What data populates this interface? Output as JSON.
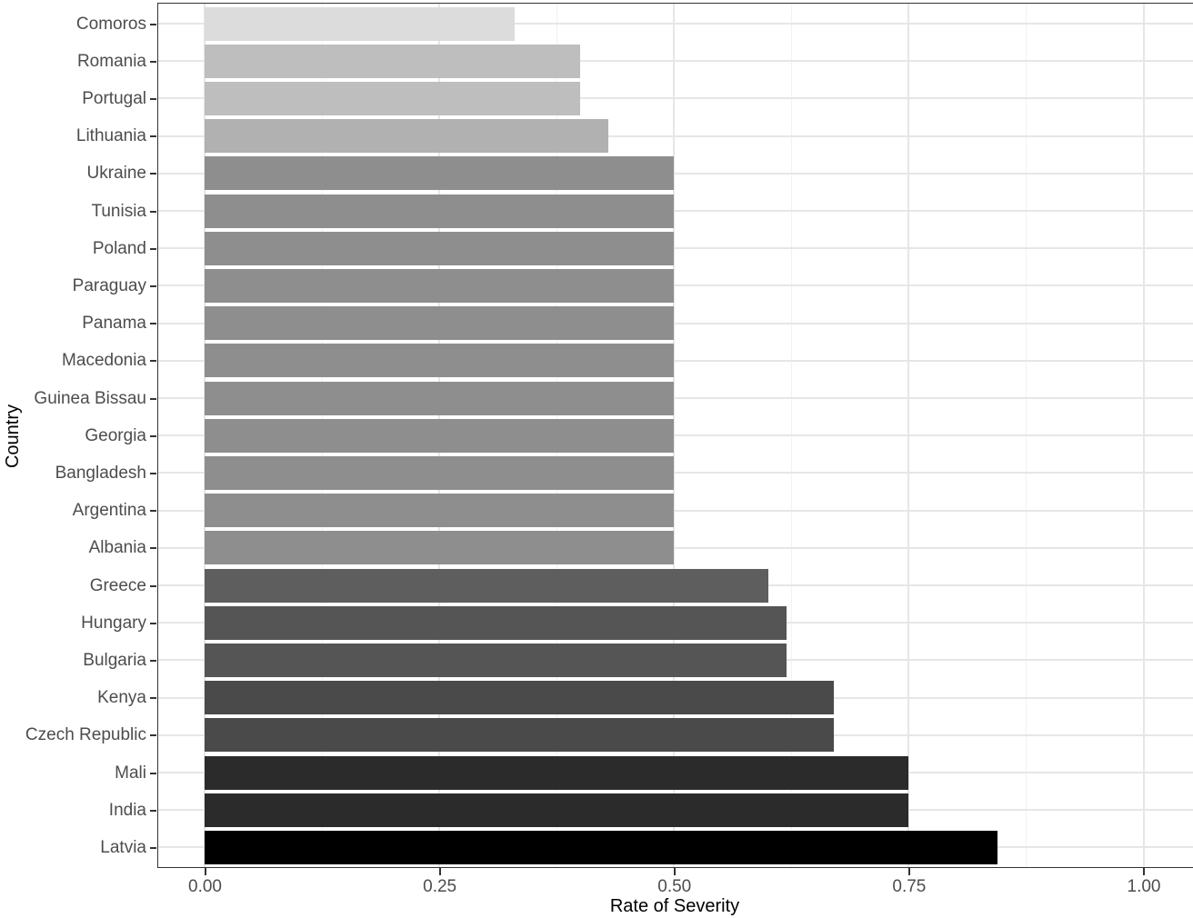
{
  "chart_data": {
    "type": "bar",
    "orientation": "horizontal",
    "title": "",
    "xlabel": "Rate of Severity",
    "ylabel": "Country",
    "xlim": [
      0,
      1.0
    ],
    "x_tick_labels": [
      "0.00",
      "0.25",
      "0.50",
      "0.75",
      "1.00"
    ],
    "x_tick_values": [
      0,
      0.25,
      0.5,
      0.75,
      1.0
    ],
    "x_minor_tick_values": [
      0.125,
      0.375,
      0.625,
      0.875
    ],
    "grid": true,
    "legend": "none",
    "color_mapping": "fill shade encodes rate of severity: light gray (low) to black (high)",
    "categories": [
      "Comoros",
      "Romania",
      "Portugal",
      "Lithuania",
      "Ukraine",
      "Tunisia",
      "Poland",
      "Paraguay",
      "Panama",
      "Macedonia",
      "Guinea Bissau",
      "Georgia",
      "Bangladesh",
      "Argentina",
      "Albania",
      "Greece",
      "Hungary",
      "Bulgaria",
      "Kenya",
      "Czech Republic",
      "Mali",
      "India",
      "Latvia"
    ],
    "values": [
      0.33,
      0.4,
      0.4,
      0.43,
      0.5,
      0.5,
      0.5,
      0.5,
      0.5,
      0.5,
      0.5,
      0.5,
      0.5,
      0.5,
      0.5,
      0.6,
      0.62,
      0.62,
      0.67,
      0.67,
      0.75,
      0.75,
      0.845
    ],
    "bar_colors": [
      "#DCDCDC",
      "#BEBEBE",
      "#BEBEBE",
      "#B1B1B1",
      "#8E8E8E",
      "#8E8E8E",
      "#8E8E8E",
      "#8E8E8E",
      "#8E8E8E",
      "#8E8E8E",
      "#8E8E8E",
      "#8E8E8E",
      "#8E8E8E",
      "#8E8E8E",
      "#8E8E8E",
      "#5E5E5E",
      "#555555",
      "#555555",
      "#4A4A4A",
      "#4A4A4A",
      "#2B2B2B",
      "#2B2B2B",
      "#000000"
    ]
  },
  "style": {
    "background": "#FFFFFF",
    "panel_border": "#333333",
    "grid_major": "#E6E6E6",
    "grid_minor": "#F2F2F2",
    "tick_mark_color": "#333333",
    "axis_text_color": "#4D4D4D",
    "axis_title_color": "#000000"
  }
}
